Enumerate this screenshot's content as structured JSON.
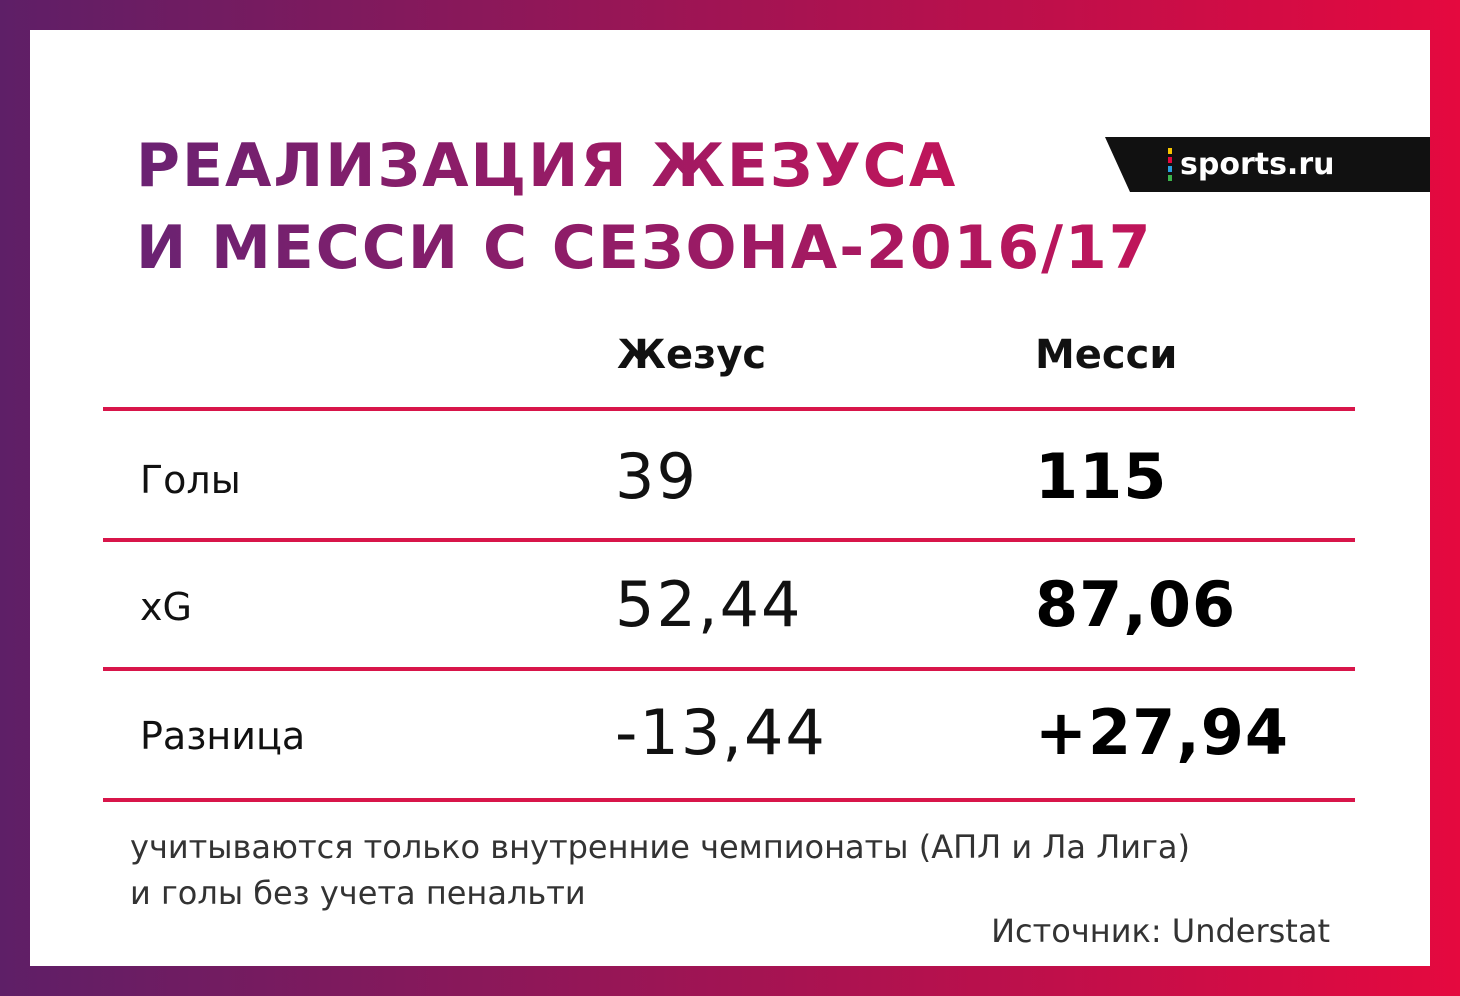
{
  "header": {
    "title": [
      "РЕАЛИЗАЦИЯ ЖЕЗУСА",
      "И МЕССИ С СЕЗОНА-2016/17"
    ],
    "logo": "sports.ru"
  },
  "table": {
    "columns": [
      "Жезус",
      "Месси"
    ],
    "rows": [
      [
        "Голы",
        "39",
        "115"
      ],
      [
        "xG",
        "52,44",
        "87,06"
      ],
      [
        "Разница",
        "-13,44",
        "+27,94"
      ]
    ]
  },
  "footnote": [
    "учитываются только внутренние чемпионаты (АПЛ и Ла Лига)",
    "и голы без учета пенальти"
  ],
  "source": "Источник: Understat"
}
